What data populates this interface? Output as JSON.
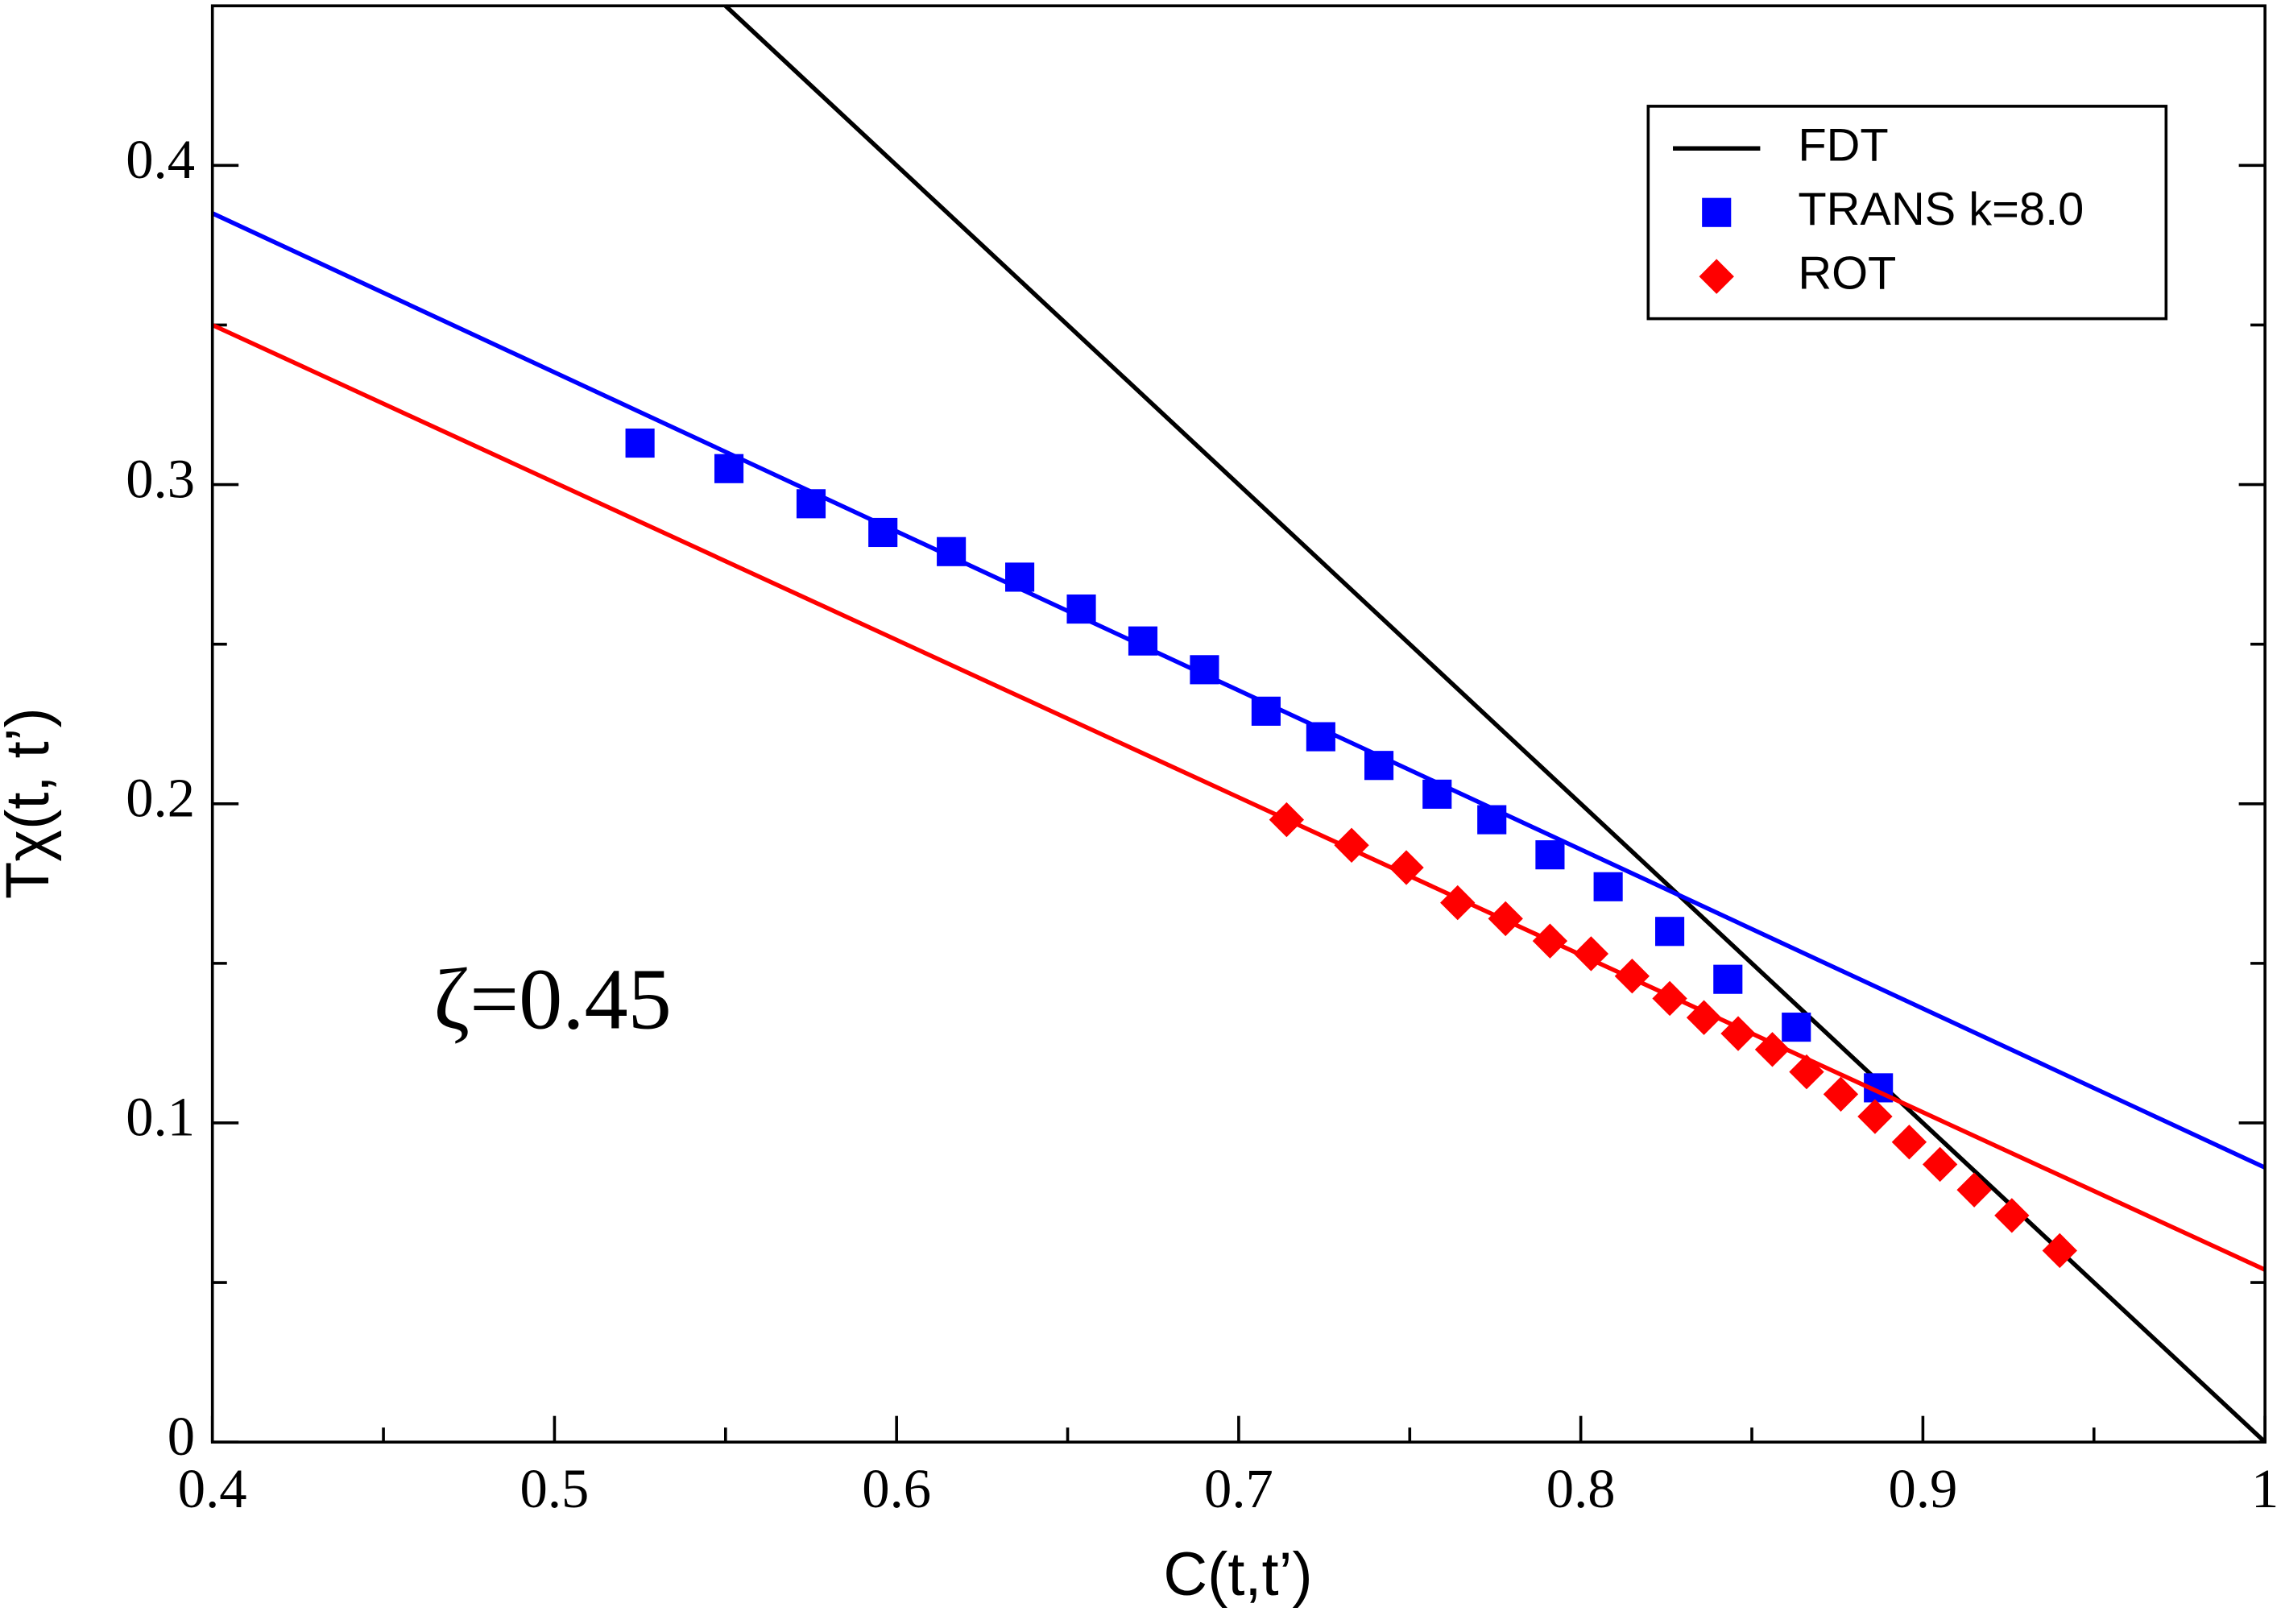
{
  "chart_data": {
    "type": "scatter",
    "xlabel": "C(t,t’)",
    "ylabel": "Tχ(t, t’)",
    "annotations": [
      "ζ=0.45"
    ],
    "xlim": [
      0.4,
      1
    ],
    "ylim": [
      0,
      0.45
    ],
    "xticks": [
      0.4,
      0.5,
      0.6,
      0.7,
      0.8,
      0.9,
      1
    ],
    "yticks": [
      0,
      0.1,
      0.2,
      0.3,
      0.4
    ],
    "xminorticks": [
      0.45,
      0.55,
      0.65,
      0.75,
      0.85,
      0.95
    ],
    "yminorticks": [
      0.05,
      0.15,
      0.25,
      0.35
    ],
    "legend": "top-right",
    "series": [
      {
        "name": "FDT",
        "style": "line",
        "color": "#000000",
        "x": [
          0.55,
          1
        ],
        "values": [
          0.45,
          0
        ]
      },
      {
        "name": "TRANS k=8.0",
        "style": "square",
        "color": "#0000ff",
        "x": [
          0.525,
          0.551,
          0.575,
          0.596,
          0.616,
          0.636,
          0.654,
          0.672,
          0.69,
          0.708,
          0.724,
          0.741,
          0.758,
          0.774,
          0.791,
          0.808,
          0.826,
          0.843,
          0.863,
          0.887
        ],
        "values": [
          0.313,
          0.305,
          0.294,
          0.285,
          0.279,
          0.271,
          0.261,
          0.251,
          0.242,
          0.229,
          0.221,
          0.212,
          0.203,
          0.195,
          0.184,
          0.174,
          0.16,
          0.145,
          0.13,
          0.111
        ]
      },
      {
        "name": "ROT",
        "style": "diamond",
        "color": "#ff0000",
        "x": [
          0.714,
          0.733,
          0.749,
          0.764,
          0.778,
          0.791,
          0.803,
          0.815,
          0.826,
          0.836,
          0.846,
          0.856,
          0.866,
          0.876,
          0.886,
          0.896,
          0.905,
          0.915,
          0.926,
          0.94
        ],
        "values": [
          0.195,
          0.187,
          0.18,
          0.169,
          0.164,
          0.157,
          0.153,
          0.146,
          0.139,
          0.133,
          0.128,
          0.123,
          0.116,
          0.109,
          0.102,
          0.094,
          0.087,
          0.079,
          0.071,
          0.06
        ]
      },
      {
        "style": "line",
        "color": "#0000ff",
        "x": [
          0.4,
          1
        ],
        "values": [
          0.385,
          0.086
        ]
      },
      {
        "style": "line",
        "color": "#ff0000",
        "x": [
          0.4,
          1
        ],
        "values": [
          0.35,
          0.054
        ]
      }
    ]
  }
}
